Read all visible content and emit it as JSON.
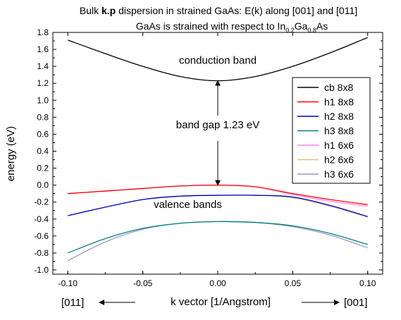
{
  "chart_data": {
    "type": "line",
    "title": {
      "prefix": "Bulk ",
      "bold": "k.p",
      "suffix": " dispersion in strained GaAs: E(k) along [001] and [011]"
    },
    "subtitle": {
      "parts": [
        "GaAs is strained with respect to In",
        "0.2",
        "Ga",
        "0.8",
        "As"
      ]
    },
    "xlabel": "k vector [1/Angstrom]",
    "ylabel": "energy (eV)",
    "xlim": [
      -0.11,
      0.11
    ],
    "ylim": [
      -1.05,
      1.8
    ],
    "xticks": [
      -0.1,
      -0.05,
      0.0,
      0.05,
      0.1
    ],
    "xtick_labels": [
      "-0.10",
      "-0.05",
      "0.00",
      "0.05",
      "0.10"
    ],
    "yticks": [
      -1.0,
      -0.8,
      -0.6,
      -0.4,
      -0.2,
      0.0,
      0.2,
      0.4,
      0.6,
      0.8,
      1.0,
      1.2,
      1.4,
      1.6,
      1.8
    ],
    "ytick_labels": [
      "-1.0",
      "-0.8",
      "-0.6",
      "-0.4",
      "-0.2",
      "0.0",
      "0.2",
      "0.4",
      "0.6",
      "0.8",
      "1.0",
      "1.2",
      "1.4",
      "1.6",
      "1.8"
    ],
    "grid": false,
    "legend_position": "right",
    "direction_labels": {
      "left": "[011]",
      "right": "[001]"
    },
    "annotations": {
      "conduction": {
        "text": "conduction band",
        "x": 0.0,
        "y": 1.43
      },
      "gap": {
        "text": "band gap 1.23 eV",
        "x": 0.0,
        "y": 0.67
      },
      "valence": {
        "text": "valence bands",
        "x": -0.02,
        "y": -0.27
      },
      "gap_arrow": {
        "x": 0.0,
        "y_top": 1.23,
        "y_bottom": 0.0
      }
    },
    "series": [
      {
        "name": "cb 8x8",
        "color": "#000000",
        "x": [
          -0.1,
          -0.075,
          -0.05,
          -0.025,
          0.0,
          0.025,
          0.05,
          0.075,
          0.1
        ],
        "y": [
          1.71,
          1.55,
          1.4,
          1.28,
          1.23,
          1.28,
          1.4,
          1.56,
          1.74
        ]
      },
      {
        "name": "h1 8x8",
        "color": "#ff0000",
        "x": [
          -0.1,
          -0.075,
          -0.05,
          -0.025,
          0.0,
          0.025,
          0.05,
          0.075,
          0.1
        ],
        "y": [
          -0.1,
          -0.07,
          -0.04,
          -0.01,
          0.0,
          -0.02,
          -0.1,
          -0.17,
          -0.23
        ]
      },
      {
        "name": "h2 8x8",
        "color": "#0000c0",
        "x": [
          -0.1,
          -0.075,
          -0.05,
          -0.025,
          0.0,
          0.025,
          0.05,
          0.075,
          0.1
        ],
        "y": [
          -0.36,
          -0.26,
          -0.17,
          -0.13,
          -0.12,
          -0.12,
          -0.14,
          -0.24,
          -0.37
        ]
      },
      {
        "name": "h3 8x8",
        "color": "#008080",
        "x": [
          -0.1,
          -0.075,
          -0.05,
          -0.025,
          0.0,
          0.025,
          0.05,
          0.075,
          0.1
        ],
        "y": [
          -0.8,
          -0.63,
          -0.51,
          -0.45,
          -0.43,
          -0.44,
          -0.48,
          -0.57,
          -0.7
        ]
      },
      {
        "name": "h1 6x6",
        "color": "#ff80ff",
        "x": [
          -0.1,
          -0.075,
          -0.05,
          -0.025,
          0.0,
          0.025,
          0.05,
          0.075,
          0.1
        ],
        "y": [
          -0.1,
          -0.07,
          -0.04,
          -0.01,
          0.0,
          -0.02,
          -0.11,
          -0.19,
          -0.25
        ]
      },
      {
        "name": "h2 6x6",
        "color": "#c8c890",
        "x": [
          -0.1,
          -0.075,
          -0.05,
          -0.025,
          0.0,
          0.025,
          0.05,
          0.075,
          0.1
        ],
        "y": [
          -0.36,
          -0.26,
          -0.17,
          -0.13,
          -0.12,
          -0.12,
          -0.15,
          -0.25,
          -0.38
        ]
      },
      {
        "name": "h3 6x6",
        "color": "#9999cc",
        "x": [
          -0.1,
          -0.075,
          -0.05,
          -0.025,
          0.0,
          0.025,
          0.05,
          0.075,
          0.1
        ],
        "y": [
          -0.89,
          -0.67,
          -0.52,
          -0.45,
          -0.43,
          -0.44,
          -0.49,
          -0.59,
          -0.74
        ]
      }
    ]
  }
}
